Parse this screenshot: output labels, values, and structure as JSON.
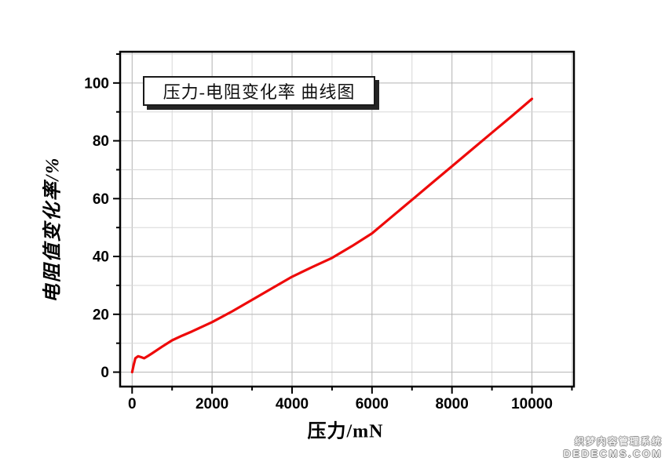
{
  "page": {
    "background": "#ffffff"
  },
  "title_box": {
    "text": "压力-电阻变化率 曲线图"
  },
  "watermark": {
    "line1": "织梦内容管理系统",
    "line2": "DEDECMS.COM"
  },
  "chart_data": {
    "type": "line",
    "title": "压力-电阻变化率 曲线图",
    "xlabel": "压力/mN",
    "ylabel": "电阻值变化率/%",
    "xlim": [
      -300,
      11050
    ],
    "ylim": [
      -5,
      110.8
    ],
    "x_major_ticks": [
      0,
      2000,
      4000,
      6000,
      8000,
      10000
    ],
    "x_major_tick_labels": [
      "0",
      "2000",
      "4000",
      "6000",
      "8000",
      "10000"
    ],
    "x_minor_step": 1000,
    "x_grid_min": 0,
    "x_grid_max": 11000,
    "y_major_ticks": [
      0,
      20,
      40,
      60,
      80,
      100
    ],
    "y_major_tick_labels": [
      "0",
      "20",
      "40",
      "60",
      "80",
      "100"
    ],
    "y_minor_step": 10,
    "y_grid_min": 0,
    "y_grid_max": 110,
    "grid": true,
    "legend_position": "none",
    "colors": {
      "line": "#ee0a0a",
      "grid_major": "#b2b2b2",
      "grid_minor": "#d7d7d7",
      "frame": "#000000",
      "tick": "#000000",
      "text": "#000000"
    },
    "series": [
      {
        "points": [
          [
            0,
            0
          ],
          [
            40,
            2.5
          ],
          [
            80,
            4.8
          ],
          [
            150,
            5.5
          ],
          [
            220,
            5.2
          ],
          [
            300,
            4.8
          ],
          [
            400,
            5.6
          ],
          [
            500,
            6.5
          ],
          [
            750,
            8.8
          ],
          [
            1000,
            11.0
          ],
          [
            1250,
            12.6
          ],
          [
            1500,
            14.1
          ],
          [
            1750,
            15.7
          ],
          [
            2000,
            17.3
          ],
          [
            2500,
            21.0
          ],
          [
            3000,
            25.0
          ],
          [
            3500,
            29.0
          ],
          [
            4000,
            33.0
          ],
          [
            4500,
            36.3
          ],
          [
            5000,
            39.5
          ],
          [
            5500,
            43.6
          ],
          [
            6000,
            48.0
          ],
          [
            6500,
            53.8
          ],
          [
            7000,
            59.6
          ],
          [
            7500,
            65.4
          ],
          [
            8000,
            71.2
          ],
          [
            8500,
            77.0
          ],
          [
            9000,
            82.8
          ],
          [
            9500,
            88.6
          ],
          [
            10000,
            94.5
          ]
        ]
      }
    ]
  }
}
